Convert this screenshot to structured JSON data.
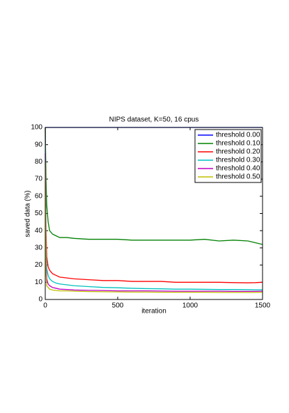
{
  "chart_data": {
    "type": "line",
    "title": "NIPS dataset, K=50, 16 cpus",
    "xlabel": "iteration",
    "ylabel": "saved data (%)",
    "x": [
      0,
      5,
      10,
      20,
      30,
      50,
      75,
      100,
      150,
      200,
      300,
      400,
      500,
      600,
      700,
      800,
      900,
      1000,
      1100,
      1200,
      1300,
      1400,
      1450,
      1500
    ],
    "series": [
      {
        "name": "threshold 0.00",
        "color": "#0000ff",
        "values": [
          100,
          100,
          100,
          100,
          100,
          100,
          100,
          100,
          100,
          100,
          100,
          100,
          100,
          100,
          100,
          100,
          100,
          100,
          100,
          100,
          100,
          100,
          100,
          100
        ]
      },
      {
        "name": "threshold 0.10",
        "color": "#008000",
        "values": [
          100,
          70,
          55,
          45,
          40,
          38,
          37,
          36,
          36,
          35.5,
          35,
          35,
          35,
          34.5,
          34.5,
          34.5,
          34.5,
          34.5,
          35,
          34,
          34.5,
          34,
          33,
          32
        ]
      },
      {
        "name": "threshold 0.20",
        "color": "#ff0000",
        "values": [
          100,
          40,
          25,
          19,
          17,
          15,
          14,
          13,
          12.5,
          12,
          11.5,
          11,
          11,
          10.5,
          10.5,
          10.5,
          10,
          10,
          10,
          10,
          9.8,
          9.7,
          9.8,
          10
        ]
      },
      {
        "name": "threshold 0.30",
        "color": "#00bfbf",
        "values": [
          100,
          30,
          18,
          14,
          12,
          10.5,
          9.5,
          9,
          8.5,
          8,
          7.5,
          7,
          6.8,
          6.5,
          6.3,
          6.2,
          6,
          6,
          5.9,
          5.8,
          5.8,
          5.7,
          5.6,
          5.6
        ]
      },
      {
        "name": "threshold 0.40",
        "color": "#bf00bf",
        "values": [
          85,
          22,
          12,
          9,
          8,
          7,
          6.5,
          6,
          5.8,
          5.5,
          5.3,
          5.2,
          5,
          5,
          5,
          4.9,
          4.8,
          4.8,
          4.8,
          4.8,
          4.7,
          4.7,
          4.7,
          4.8
        ]
      },
      {
        "name": "threshold 0.50",
        "color": "#bfbf00",
        "values": [
          80,
          15,
          8,
          7,
          6,
          5.5,
          5.2,
          5,
          5,
          4.8,
          4.6,
          4.5,
          4.4,
          4.3,
          4.3,
          4.2,
          4.2,
          4.2,
          4.2,
          4.1,
          4.1,
          4.1,
          4.1,
          4.2
        ]
      }
    ],
    "xlim": [
      0,
      1500
    ],
    "xticks": [
      0,
      500,
      1000,
      1500
    ],
    "ylim": [
      0,
      100
    ],
    "yticks": [
      0,
      10,
      20,
      30,
      40,
      50,
      60,
      70,
      80,
      90,
      100
    ],
    "legend": "upper right",
    "grid": false
  }
}
